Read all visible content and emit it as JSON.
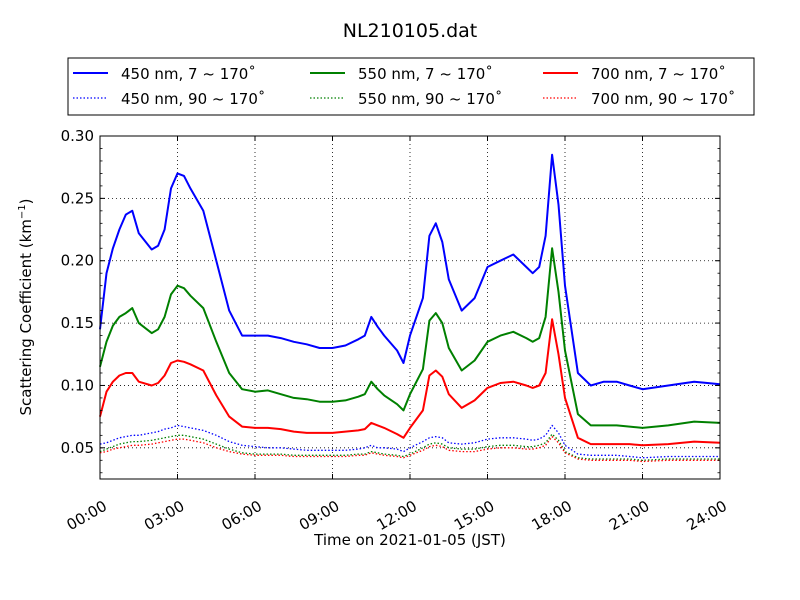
{
  "chart_data": {
    "type": "line",
    "title": "NL210105.dat",
    "xlabel": "Time on 2021-01-05 (JST)",
    "ylabel": "Scattering Coefficient (km",
    "ylabel_sup": "−1",
    "ylabel_close": ")",
    "xlim": [
      "00:00",
      "24:00"
    ],
    "ylim": [
      0.025,
      0.3
    ],
    "x_ticks": [
      "00:00",
      "03:00",
      "06:00",
      "09:00",
      "12:00",
      "15:00",
      "18:00",
      "21:00",
      "24:00"
    ],
    "y_ticks": [
      "0.05",
      "0.10",
      "0.15",
      "0.20",
      "0.25",
      "0.30"
    ],
    "y_tick_values": [
      0.05,
      0.1,
      0.15,
      0.2,
      0.25,
      0.3
    ],
    "grid": true,
    "legend_position": "top",
    "x_hours": [
      0,
      0.25,
      0.5,
      0.75,
      1.0,
      1.25,
      1.5,
      2.0,
      2.25,
      2.5,
      2.75,
      3.0,
      3.25,
      3.5,
      4.0,
      4.5,
      5.0,
      5.5,
      6.0,
      6.5,
      7.0,
      7.5,
      8.0,
      8.5,
      9.0,
      9.5,
      10.0,
      10.25,
      10.5,
      10.75,
      11.0,
      11.5,
      11.75,
      12.0,
      12.5,
      12.75,
      13.0,
      13.25,
      13.5,
      14.0,
      14.5,
      15.0,
      15.5,
      16.0,
      16.5,
      16.75,
      17.0,
      17.25,
      17.5,
      17.75,
      18.0,
      18.5,
      19.0,
      19.5,
      20.0,
      20.5,
      21.0,
      22.0,
      23.0,
      24.0
    ],
    "series": [
      {
        "name": "450 nm, 7 ~ 170˚",
        "color": "#0000ff",
        "style": "solid",
        "values": [
          0.145,
          0.19,
          0.21,
          0.225,
          0.237,
          0.24,
          0.222,
          0.209,
          0.212,
          0.225,
          0.258,
          0.27,
          0.268,
          0.258,
          0.24,
          0.2,
          0.16,
          0.14,
          0.14,
          0.14,
          0.138,
          0.135,
          0.133,
          0.13,
          0.13,
          0.132,
          0.137,
          0.14,
          0.155,
          0.147,
          0.14,
          0.128,
          0.118,
          0.14,
          0.17,
          0.22,
          0.23,
          0.215,
          0.185,
          0.16,
          0.17,
          0.195,
          0.2,
          0.205,
          0.195,
          0.19,
          0.195,
          0.22,
          0.285,
          0.245,
          0.18,
          0.11,
          0.1,
          0.103,
          0.103,
          0.1,
          0.097,
          0.1,
          0.103,
          0.101
        ]
      },
      {
        "name": "450 nm, 90 ~ 170˚",
        "color": "#0000ff",
        "style": "dotted",
        "values": [
          0.053,
          0.054,
          0.056,
          0.058,
          0.059,
          0.06,
          0.06,
          0.062,
          0.063,
          0.065,
          0.066,
          0.068,
          0.067,
          0.066,
          0.064,
          0.06,
          0.055,
          0.052,
          0.051,
          0.05,
          0.05,
          0.049,
          0.048,
          0.048,
          0.048,
          0.048,
          0.049,
          0.05,
          0.052,
          0.05,
          0.05,
          0.049,
          0.047,
          0.05,
          0.055,
          0.058,
          0.059,
          0.058,
          0.054,
          0.053,
          0.054,
          0.057,
          0.058,
          0.058,
          0.057,
          0.056,
          0.057,
          0.06,
          0.068,
          0.062,
          0.052,
          0.045,
          0.044,
          0.044,
          0.044,
          0.043,
          0.042,
          0.043,
          0.043,
          0.043
        ]
      },
      {
        "name": "550 nm, 7 ~ 170˚",
        "color": "#008000",
        "style": "solid",
        "values": [
          0.115,
          0.135,
          0.148,
          0.155,
          0.158,
          0.162,
          0.15,
          0.142,
          0.145,
          0.155,
          0.173,
          0.18,
          0.178,
          0.172,
          0.162,
          0.135,
          0.11,
          0.097,
          0.095,
          0.096,
          0.093,
          0.09,
          0.089,
          0.087,
          0.087,
          0.088,
          0.091,
          0.093,
          0.103,
          0.097,
          0.092,
          0.085,
          0.08,
          0.093,
          0.113,
          0.152,
          0.158,
          0.15,
          0.13,
          0.112,
          0.12,
          0.135,
          0.14,
          0.143,
          0.138,
          0.135,
          0.138,
          0.155,
          0.21,
          0.175,
          0.128,
          0.077,
          0.068,
          0.068,
          0.068,
          0.067,
          0.066,
          0.068,
          0.071,
          0.07
        ]
      },
      {
        "name": "550 nm, 90 ~ 170˚",
        "color": "#008000",
        "style": "dotted",
        "values": [
          0.047,
          0.049,
          0.051,
          0.053,
          0.054,
          0.055,
          0.055,
          0.056,
          0.057,
          0.058,
          0.059,
          0.06,
          0.06,
          0.059,
          0.057,
          0.053,
          0.049,
          0.046,
          0.045,
          0.045,
          0.045,
          0.044,
          0.044,
          0.044,
          0.044,
          0.044,
          0.045,
          0.045,
          0.047,
          0.046,
          0.045,
          0.044,
          0.043,
          0.045,
          0.05,
          0.053,
          0.054,
          0.053,
          0.05,
          0.049,
          0.049,
          0.051,
          0.052,
          0.052,
          0.051,
          0.051,
          0.052,
          0.054,
          0.061,
          0.056,
          0.047,
          0.042,
          0.041,
          0.041,
          0.041,
          0.041,
          0.04,
          0.041,
          0.041,
          0.041
        ]
      },
      {
        "name": "700 nm, 7 ~ 170˚",
        "color": "#ff0000",
        "style": "solid",
        "values": [
          0.075,
          0.095,
          0.103,
          0.108,
          0.11,
          0.11,
          0.103,
          0.1,
          0.102,
          0.108,
          0.118,
          0.12,
          0.119,
          0.117,
          0.112,
          0.092,
          0.075,
          0.067,
          0.066,
          0.066,
          0.065,
          0.063,
          0.062,
          0.062,
          0.062,
          0.063,
          0.064,
          0.065,
          0.07,
          0.068,
          0.066,
          0.061,
          0.058,
          0.066,
          0.08,
          0.108,
          0.112,
          0.107,
          0.093,
          0.082,
          0.088,
          0.098,
          0.102,
          0.103,
          0.1,
          0.098,
          0.1,
          0.11,
          0.153,
          0.125,
          0.09,
          0.058,
          0.053,
          0.053,
          0.053,
          0.053,
          0.052,
          0.053,
          0.055,
          0.054
        ]
      },
      {
        "name": "700 nm, 90 ~ 170˚",
        "color": "#ff0000",
        "style": "dotted",
        "values": [
          0.046,
          0.047,
          0.049,
          0.05,
          0.051,
          0.052,
          0.052,
          0.053,
          0.054,
          0.055,
          0.056,
          0.057,
          0.057,
          0.056,
          0.054,
          0.05,
          0.047,
          0.045,
          0.044,
          0.044,
          0.044,
          0.043,
          0.043,
          0.043,
          0.043,
          0.043,
          0.044,
          0.044,
          0.046,
          0.045,
          0.044,
          0.043,
          0.042,
          0.044,
          0.048,
          0.051,
          0.052,
          0.051,
          0.048,
          0.047,
          0.047,
          0.049,
          0.05,
          0.05,
          0.049,
          0.049,
          0.05,
          0.052,
          0.059,
          0.054,
          0.046,
          0.041,
          0.04,
          0.04,
          0.04,
          0.04,
          0.039,
          0.04,
          0.04,
          0.04
        ]
      }
    ]
  }
}
